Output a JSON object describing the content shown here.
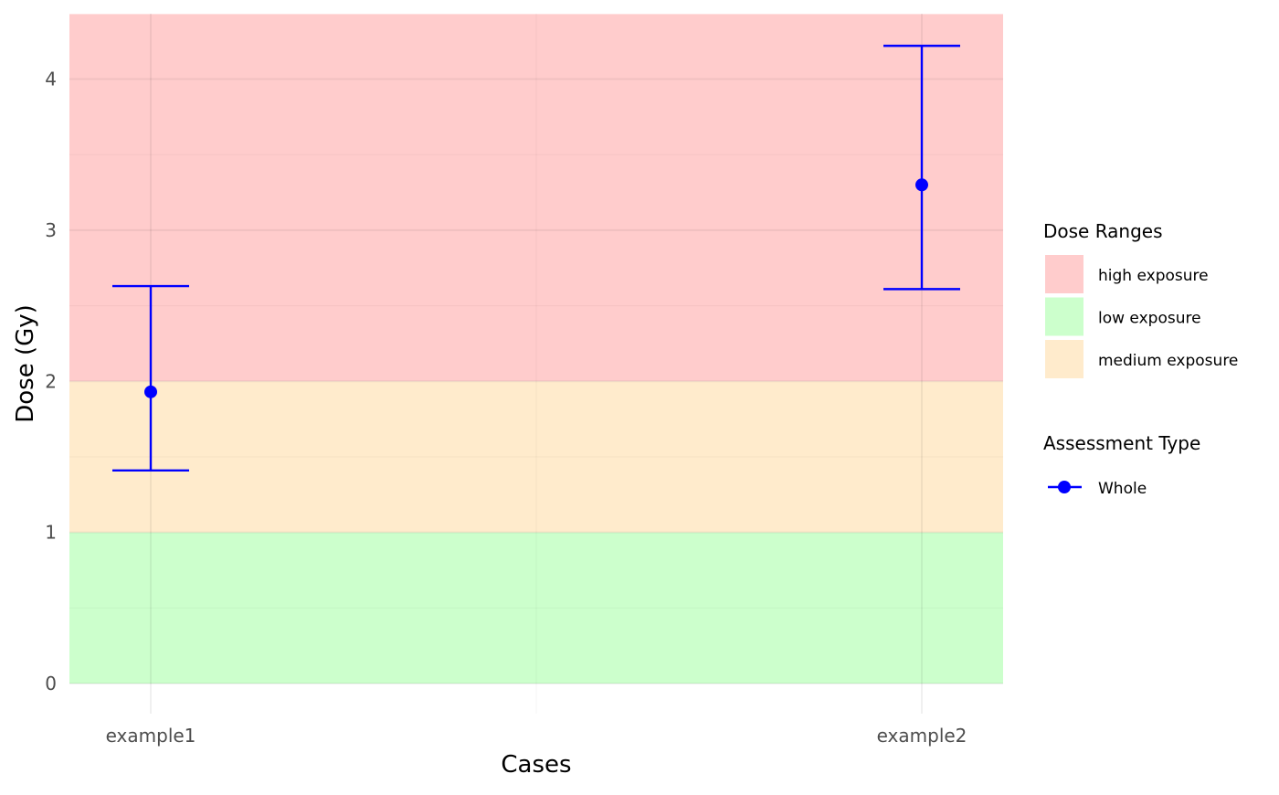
{
  "chart_data": {
    "type": "scatter",
    "xlabel": "Cases",
    "ylabel": "Dose (Gy)",
    "categories": [
      "example1",
      "example2"
    ],
    "ylim": [
      -0.2,
      4.43
    ],
    "y_ticks": [
      0,
      1,
      2,
      3,
      4
    ],
    "grid": true,
    "bands": [
      {
        "name": "low exposure",
        "from": 0,
        "to": 1,
        "color": "#ccffcc"
      },
      {
        "name": "medium exposure",
        "from": 1,
        "to": 2,
        "color": "#ffebcc"
      },
      {
        "name": "high exposure",
        "from": 2,
        "to": 4.43,
        "color": "#ffcccc"
      }
    ],
    "series": [
      {
        "name": "Whole",
        "color": "#0000ff",
        "points": [
          {
            "x": "example1",
            "y": 1.93,
            "lower": 1.41,
            "upper": 2.63
          },
          {
            "x": "example2",
            "y": 3.3,
            "lower": 2.61,
            "upper": 4.22
          }
        ]
      }
    ],
    "legends": [
      {
        "title": "Dose Ranges",
        "items": [
          {
            "label": "high exposure",
            "color": "#ffcccc"
          },
          {
            "label": "low exposure",
            "color": "#ccffcc"
          },
          {
            "label": "medium exposure",
            "color": "#ffebcc"
          }
        ]
      },
      {
        "title": "Assessment Type",
        "items": [
          {
            "label": "Whole",
            "color": "#0000ff",
            "marker": "point-line"
          }
        ]
      }
    ],
    "legend_position": "right"
  }
}
